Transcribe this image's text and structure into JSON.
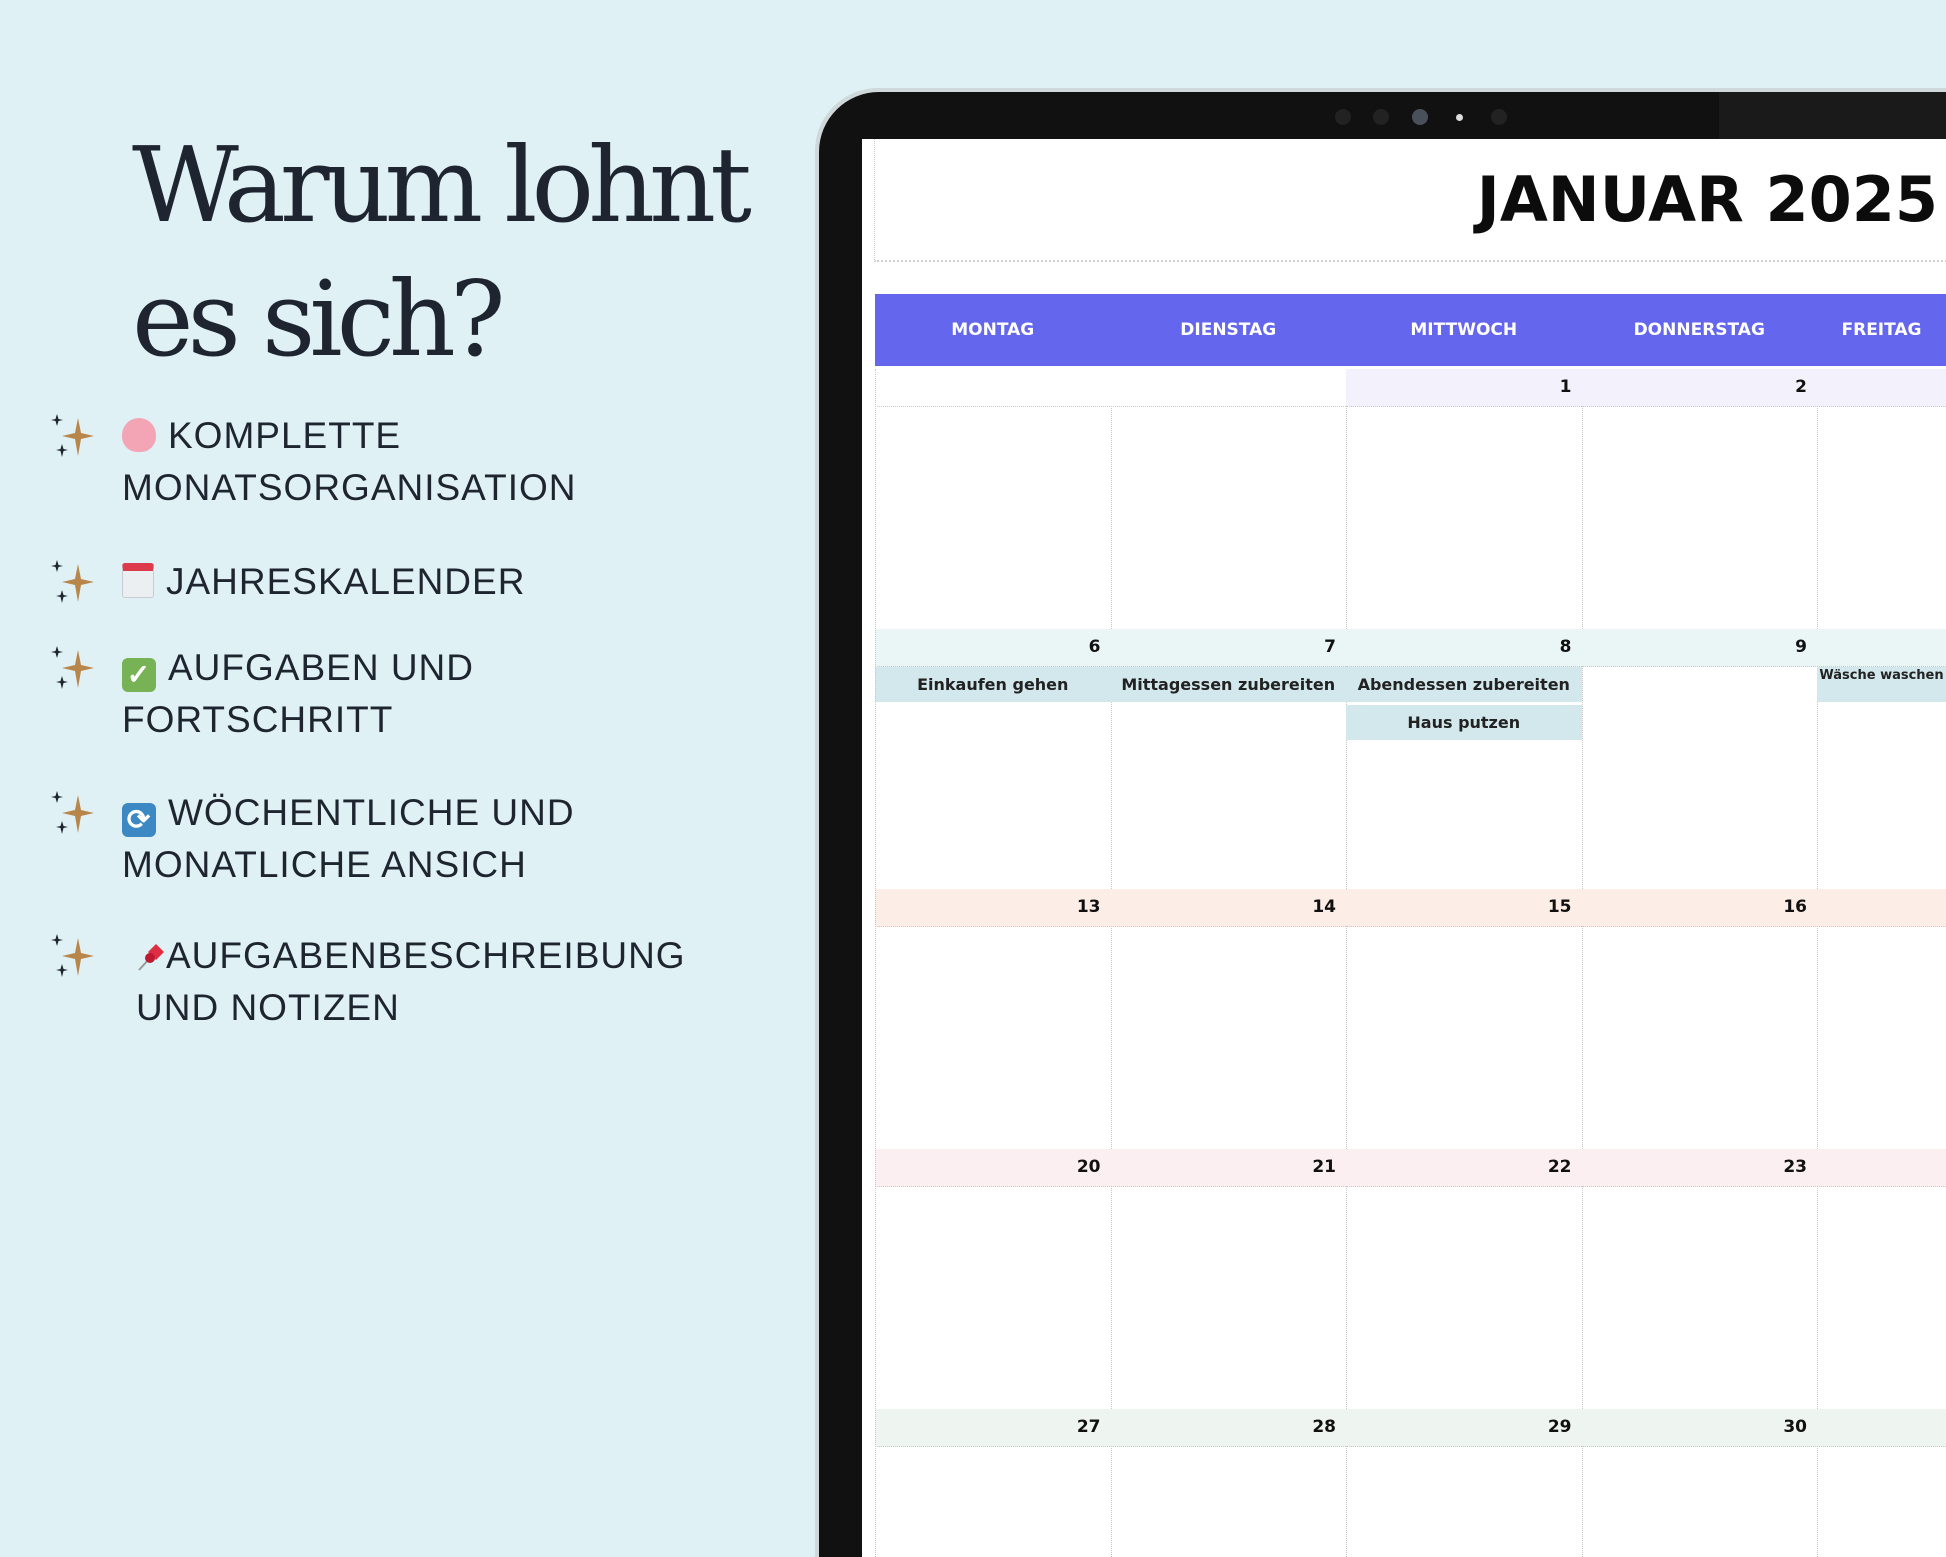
{
  "headline": {
    "line1": "Warum lohnt",
    "line2": "es sich?"
  },
  "features": [
    {
      "icon": "brain-icon",
      "line1": "KOMPLETTE",
      "line2": "MONATSORGANISATION"
    },
    {
      "icon": "calendar-icon",
      "line1": "JAHRESKALENDER",
      "line2": ""
    },
    {
      "icon": "check-icon",
      "line1": "AUFGABEN UND",
      "line2": "FORTSCHRITT"
    },
    {
      "icon": "repeat-icon",
      "line1": "WÖCHENTLICHE UND",
      "line2": "MONATLICHE ANSICH"
    },
    {
      "icon": "pushpin-icon",
      "line1": "AUFGABENBESCHREIBUNG",
      "line2": "UND NOTIZEN"
    }
  ],
  "colors": {
    "background": "#dff1f4",
    "header": "#6466ee",
    "task": "#d2e8ec",
    "sparkle": "#b8864a"
  },
  "calendar": {
    "title": "JANUAR 2025",
    "weekdays": [
      "MONTAG",
      "DIENSTAG",
      "MITTWOCH",
      "DONNERSTAG",
      "FREITAG"
    ],
    "weeks": [
      {
        "color": "#f3f2fc",
        "days": [
          "",
          "",
          "1",
          "2",
          ""
        ],
        "tasks": []
      },
      {
        "color": "#eaf5f5",
        "days": [
          "6",
          "7",
          "8",
          "9",
          ""
        ],
        "tasks": [
          {
            "col": 0,
            "row": 0,
            "text": "Einkaufen gehen"
          },
          {
            "col": 1,
            "row": 0,
            "text": "Mittagessen zubereiten"
          },
          {
            "col": 2,
            "row": 0,
            "text": "Abendessen zubereiten"
          },
          {
            "col": 2,
            "row": 1,
            "text": "Haus putzen"
          },
          {
            "col": 4,
            "row": 0,
            "text": "Wäsche waschen"
          }
        ]
      },
      {
        "color": "#fcede6",
        "days": [
          "13",
          "14",
          "15",
          "16",
          ""
        ],
        "tasks": []
      },
      {
        "color": "#fbeff2",
        "days": [
          "20",
          "21",
          "22",
          "23",
          ""
        ],
        "tasks": []
      },
      {
        "color": "#eef5f1",
        "days": [
          "27",
          "28",
          "29",
          "30",
          ""
        ],
        "tasks": []
      }
    ]
  }
}
